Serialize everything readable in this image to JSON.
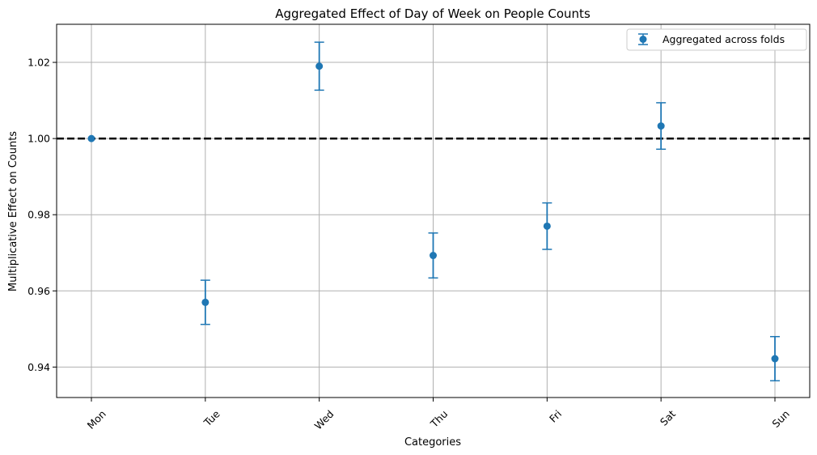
{
  "chart_data": {
    "type": "scatter",
    "title": "Aggregated Effect of Day of Week on People Counts",
    "xlabel": "Categories",
    "ylabel": "Multiplicative Effect on Counts",
    "categories": [
      "Mon",
      "Tue",
      "Wed",
      "Thu",
      "Fri",
      "Sat",
      "Sun"
    ],
    "series": [
      {
        "name": "Aggregated across folds",
        "values": [
          1.0,
          0.957,
          1.019,
          0.9693,
          0.977,
          1.0033,
          0.9422
        ],
        "error": [
          0.0,
          0.0058,
          0.0063,
          0.0059,
          0.0061,
          0.0061,
          0.0058
        ]
      }
    ],
    "reference_line": {
      "y": 1.0,
      "style": "dashed",
      "color": "#000000"
    },
    "ylim": [
      0.932,
      1.03
    ],
    "yticks": [
      0.94,
      0.96,
      0.98,
      1.0,
      1.02
    ],
    "ytick_labels": [
      "0.94",
      "0.96",
      "0.98",
      "1.00",
      "1.02"
    ],
    "grid": true,
    "legend_position": "top-right",
    "colors": {
      "series": "#1f77b4",
      "grid": "#b0b0b0",
      "axes": "#000000"
    }
  }
}
